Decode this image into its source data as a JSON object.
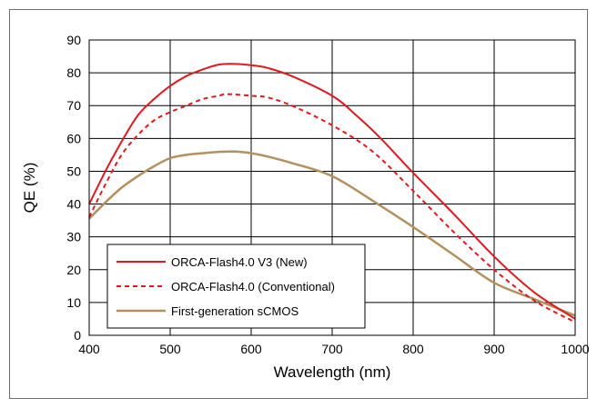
{
  "chart_data": {
    "type": "line",
    "xlabel": "Wavelength (nm)",
    "ylabel": "QE (%)",
    "xlim": [
      400,
      1000
    ],
    "ylim": [
      0,
      90
    ],
    "x_ticks": [
      400,
      500,
      600,
      700,
      800,
      900,
      1000
    ],
    "y_ticks": [
      0,
      10,
      20,
      30,
      40,
      50,
      60,
      70,
      80,
      90
    ],
    "grid": true,
    "legend_position": "bottom-left",
    "series": [
      {
        "name": "ORCA-Flash4.0 V3 (New)",
        "color": "#e0191f",
        "style": "solid",
        "points": [
          [
            400,
            40
          ],
          [
            420,
            50
          ],
          [
            440,
            59
          ],
          [
            460,
            67
          ],
          [
            480,
            72
          ],
          [
            500,
            76
          ],
          [
            520,
            79
          ],
          [
            540,
            81
          ],
          [
            560,
            82.5
          ],
          [
            580,
            82.7
          ],
          [
            600,
            82.3
          ],
          [
            620,
            81.5
          ],
          [
            650,
            79
          ],
          [
            700,
            73
          ],
          [
            730,
            67
          ],
          [
            760,
            60
          ],
          [
            800,
            49.5
          ],
          [
            850,
            37
          ],
          [
            900,
            24
          ],
          [
            950,
            13
          ],
          [
            1000,
            5
          ]
        ]
      },
      {
        "name": "ORCA-Flash4.0 (Conventional)",
        "color": "#e0191f",
        "style": "dashed",
        "points": [
          [
            400,
            36
          ],
          [
            420,
            46
          ],
          [
            440,
            55
          ],
          [
            460,
            61
          ],
          [
            480,
            65.5
          ],
          [
            500,
            68
          ],
          [
            520,
            70
          ],
          [
            540,
            72
          ],
          [
            560,
            73
          ],
          [
            570,
            73.5
          ],
          [
            600,
            73
          ],
          [
            620,
            72.5
          ],
          [
            650,
            70
          ],
          [
            700,
            64
          ],
          [
            750,
            56
          ],
          [
            800,
            44
          ],
          [
            850,
            31.5
          ],
          [
            900,
            20
          ],
          [
            950,
            10.5
          ],
          [
            1000,
            4
          ]
        ]
      },
      {
        "name": "First-generation sCMOS",
        "color": "#b3915e",
        "style": "solid",
        "points": [
          [
            400,
            35.5
          ],
          [
            420,
            40.5
          ],
          [
            440,
            45
          ],
          [
            460,
            48.5
          ],
          [
            480,
            51.5
          ],
          [
            500,
            54
          ],
          [
            520,
            55
          ],
          [
            540,
            55.5
          ],
          [
            560,
            55.9
          ],
          [
            580,
            56
          ],
          [
            600,
            55.5
          ],
          [
            620,
            54.5
          ],
          [
            650,
            52.5
          ],
          [
            700,
            48.5
          ],
          [
            750,
            41
          ],
          [
            800,
            33
          ],
          [
            850,
            24.5
          ],
          [
            900,
            16
          ],
          [
            950,
            11
          ],
          [
            1000,
            6
          ]
        ]
      }
    ]
  }
}
